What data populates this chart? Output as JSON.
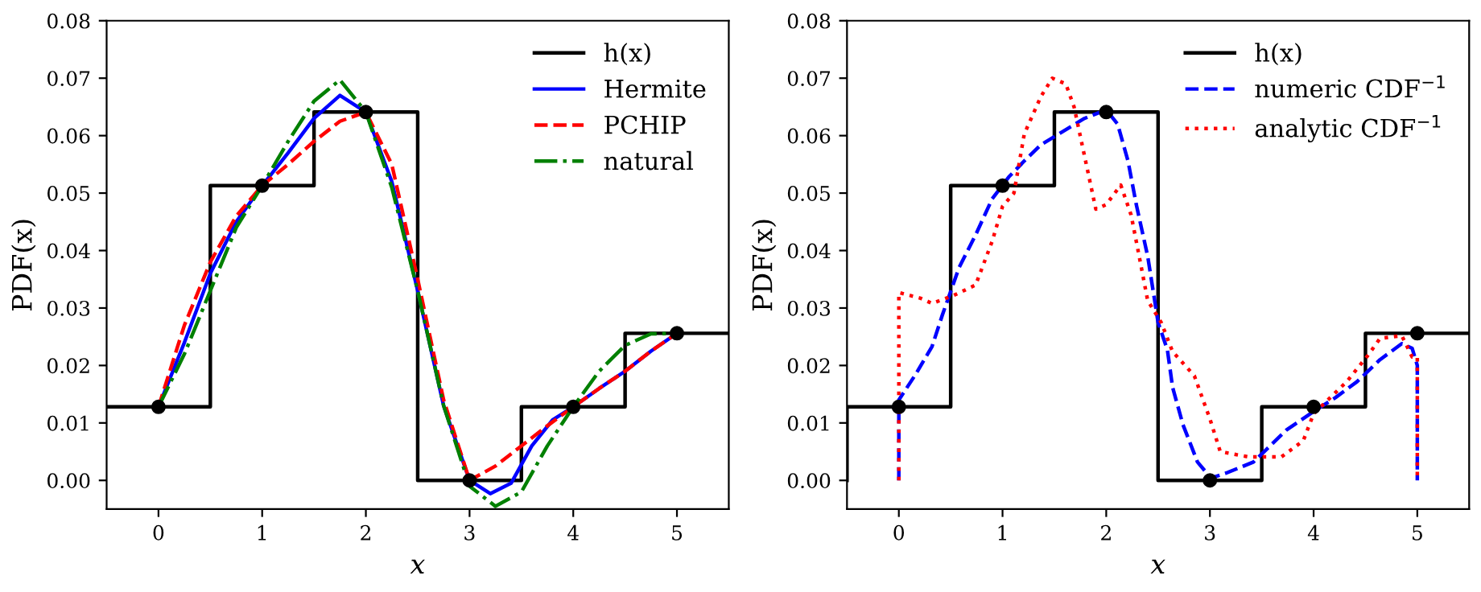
{
  "chart_data": [
    {
      "type": "line",
      "xlabel": "x",
      "ylabel": "PDF(x)",
      "xlim": [
        -0.5,
        5.5
      ],
      "ylim": [
        -0.005,
        0.08
      ],
      "xticks": [
        0,
        1,
        2,
        3,
        4,
        5
      ],
      "yticks": [
        {
          "value": 0,
          "label": "0.00"
        },
        {
          "value": 0.01,
          "label": "0.01"
        },
        {
          "value": 0.02,
          "label": "0.02"
        },
        {
          "value": 0.03,
          "label": "0.03"
        },
        {
          "value": 0.04,
          "label": "0.04"
        },
        {
          "value": 0.05,
          "label": "0.05"
        },
        {
          "value": 0.06,
          "label": "0.06"
        },
        {
          "value": 0.07,
          "label": "0.07"
        },
        {
          "value": 0.08,
          "label": "0.08"
        }
      ],
      "grid": false,
      "legend": "top right",
      "series": [
        {
          "name": "h(x)",
          "type": "step",
          "color": "#000000",
          "line_style": "solid",
          "x": [
            -0.5,
            0.5,
            1.5,
            2.5,
            3.5,
            4.5,
            5.5
          ],
          "values": [
            0.0128,
            0.0513,
            0.0641,
            0,
            0.0128,
            0.0256,
            0.0256
          ]
        },
        {
          "name": "Hermite",
          "color": "#0000ff",
          "line_style": "solid",
          "x": [
            0,
            0.25,
            0.5,
            0.75,
            1,
            1.25,
            1.5,
            1.75,
            2,
            2.25,
            2.5,
            2.75,
            3,
            3.2,
            3.4,
            3.6,
            3.8,
            4,
            4.25,
            4.5,
            4.75,
            5
          ],
          "values": [
            0.0128,
            0.024,
            0.036,
            0.045,
            0.0513,
            0.057,
            0.063,
            0.067,
            0.0641,
            0.052,
            0.033,
            0.013,
            0,
            -0.0023,
            -0.0005,
            0.006,
            0.0105,
            0.0128,
            0.016,
            0.019,
            0.0225,
            0.0256
          ]
        },
        {
          "name": "PCHIP",
          "color": "#ff0000",
          "line_style": "dashed",
          "x": [
            0,
            0.25,
            0.5,
            0.75,
            1,
            1.25,
            1.5,
            1.75,
            2,
            2.25,
            2.5,
            2.75,
            3,
            3.25,
            3.5,
            3.75,
            4,
            4.25,
            4.5,
            4.75,
            5
          ],
          "values": [
            0.0128,
            0.027,
            0.038,
            0.046,
            0.0513,
            0.055,
            0.059,
            0.0625,
            0.0641,
            0.055,
            0.035,
            0.014,
            0,
            0.0025,
            0.006,
            0.0095,
            0.0128,
            0.016,
            0.019,
            0.0225,
            0.0256
          ]
        },
        {
          "name": "natural",
          "color": "#008000",
          "line_style": "dashdot",
          "x": [
            0,
            0.25,
            0.5,
            0.75,
            1,
            1.25,
            1.5,
            1.75,
            2,
            2.25,
            2.5,
            2.75,
            3,
            3.25,
            3.5,
            3.75,
            4,
            4.25,
            4.5,
            4.75,
            5
          ],
          "values": [
            0.0128,
            0.022,
            0.033,
            0.044,
            0.0513,
            0.059,
            0.066,
            0.0697,
            0.0641,
            0.051,
            0.033,
            0.013,
            -0.001,
            -0.0045,
            -0.002,
            0.006,
            0.0128,
            0.019,
            0.0235,
            0.0255,
            0.0256
          ]
        },
        {
          "type": "scatter",
          "color": "#000000",
          "marker": "circle",
          "x": [
            0,
            1,
            2,
            3,
            4,
            5
          ],
          "values": [
            0.0128,
            0.0513,
            0.0641,
            0,
            0.0128,
            0.0256
          ]
        }
      ]
    },
    {
      "type": "line",
      "xlabel": "x",
      "ylabel": "PDF(x)",
      "xlim": [
        -0.5,
        5.5
      ],
      "ylim": [
        -0.005,
        0.08
      ],
      "xticks": [
        0,
        1,
        2,
        3,
        4,
        5
      ],
      "yticks": [
        {
          "value": 0,
          "label": "0.00"
        },
        {
          "value": 0.01,
          "label": "0.01"
        },
        {
          "value": 0.02,
          "label": "0.02"
        },
        {
          "value": 0.03,
          "label": "0.03"
        },
        {
          "value": 0.04,
          "label": "0.04"
        },
        {
          "value": 0.05,
          "label": "0.05"
        },
        {
          "value": 0.06,
          "label": "0.06"
        },
        {
          "value": 0.07,
          "label": "0.07"
        },
        {
          "value": 0.08,
          "label": "0.08"
        }
      ],
      "grid": false,
      "legend": "top right",
      "series": [
        {
          "name": "h(x)",
          "type": "step",
          "color": "#000000",
          "line_style": "solid",
          "x": [
            -0.5,
            -0.5,
            0.5,
            1.5,
            2.5,
            3.5,
            4.5,
            5.5
          ],
          "values": [
            0,
            0.0128,
            0.0513,
            0.0641,
            0,
            0.0128,
            0.0256,
            0.0256
          ]
        },
        {
          "name": "numeric CDF$^{−1}$",
          "color": "#0000ff",
          "line_style": "dashed",
          "x": [
            0,
            0,
            0.16,
            0.32,
            0.42,
            0.58,
            0.74,
            0.9,
            1.06,
            1.21,
            1.37,
            1.58,
            1.79,
            2.0,
            2.11,
            2.21,
            2.29,
            2.4,
            2.5,
            2.59,
            2.64,
            2.74,
            2.88,
            3.01,
            3.16,
            3.42,
            3.58,
            3.74,
            4.0,
            4.21,
            4.42,
            4.64,
            4.85,
            4.95,
            5.0,
            5.0
          ],
          "values": [
            0,
            0.014,
            0.0184,
            0.0233,
            0.0288,
            0.037,
            0.0427,
            0.049,
            0.0528,
            0.0556,
            0.0584,
            0.0607,
            0.063,
            0.0645,
            0.062,
            0.0556,
            0.048,
            0.039,
            0.0275,
            0.0227,
            0.0162,
            0.0097,
            0.0032,
            0.0004,
            0.0013,
            0.0032,
            0.006,
            0.0088,
            0.012,
            0.0144,
            0.0172,
            0.021,
            0.0238,
            0.023,
            0.02,
            0
          ]
        },
        {
          "name": "analytic CDF$^{−1}$",
          "color": "#ff0000",
          "line_style": "dotted",
          "x": [
            0,
            0,
            0.21,
            0.32,
            0.53,
            0.74,
            0.9,
            1.0,
            1.11,
            1.21,
            1.37,
            1.48,
            1.61,
            1.69,
            1.79,
            1.9,
            2.0,
            2.14,
            2.24,
            2.32,
            2.4,
            2.53,
            2.64,
            2.85,
            3.0,
            3.1,
            3.37,
            3.69,
            3.9,
            4.0,
            4.32,
            4.53,
            4.64,
            4.85,
            4.95,
            5.0,
            5.0
          ],
          "values": [
            0,
            0.0327,
            0.0317,
            0.0308,
            0.0322,
            0.034,
            0.0416,
            0.0477,
            0.05,
            0.0603,
            0.0668,
            0.07,
            0.069,
            0.065,
            0.0565,
            0.0472,
            0.048,
            0.0514,
            0.0462,
            0.0388,
            0.0313,
            0.0275,
            0.0224,
            0.0182,
            0.0107,
            0.005,
            0.0041,
            0.0041,
            0.0069,
            0.0116,
            0.0172,
            0.0219,
            0.0247,
            0.0252,
            0.0215,
            0.0215,
            0
          ]
        },
        {
          "type": "scatter",
          "color": "#000000",
          "marker": "circle",
          "x": [
            0,
            1,
            2,
            3,
            4,
            5
          ],
          "values": [
            0.0128,
            0.0513,
            0.0641,
            0,
            0.0128,
            0.0256
          ]
        }
      ]
    }
  ]
}
